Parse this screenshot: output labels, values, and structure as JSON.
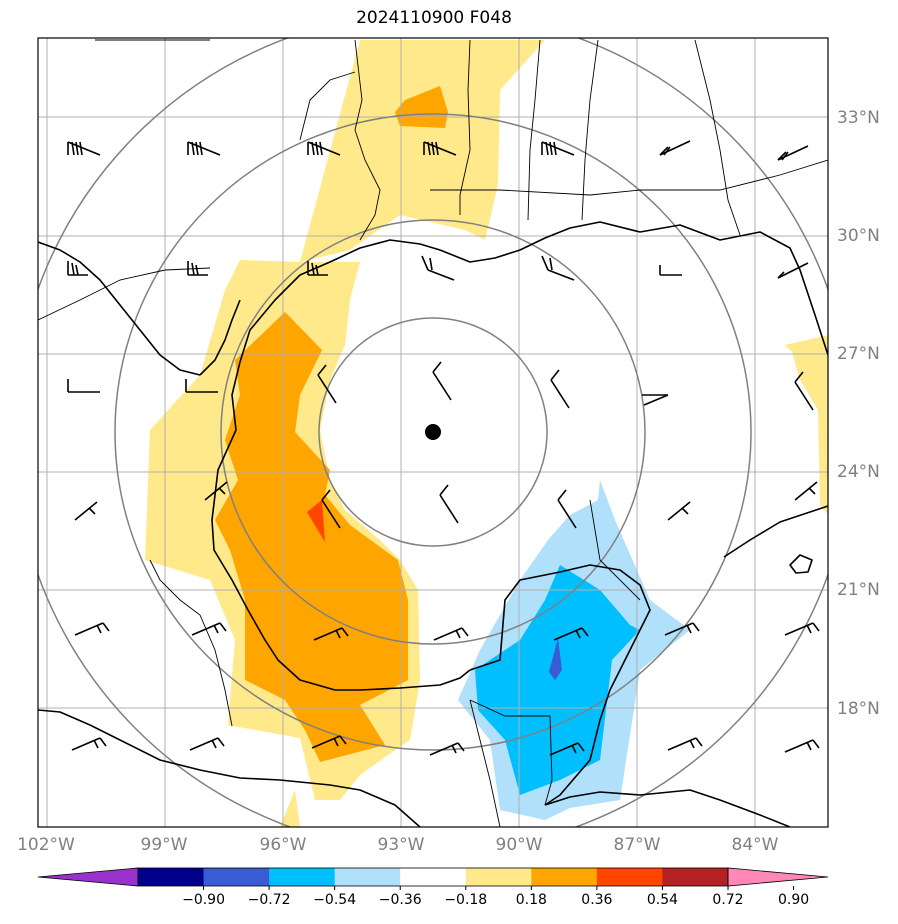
{
  "title": "2024110900 F048",
  "lat_labels": [
    "33°N",
    "30°N",
    "27°N",
    "24°N",
    "21°N",
    "18°N"
  ],
  "lon_labels": [
    "102°W",
    "99°W",
    "96°W",
    "93°W",
    "90°W",
    "87°W",
    "84°W"
  ],
  "colorbar": {
    "ticks": [
      "−0.90",
      "−0.72",
      "−0.54",
      "−0.36",
      "−0.18",
      "0.18",
      "0.36",
      "0.54",
      "0.72",
      "0.90"
    ],
    "colors": [
      "#9932cc",
      "#00008b",
      "#3a5bd6",
      "#00bfff",
      "#b0e0fa",
      "#ffffff",
      "#ffe98a",
      "#ffa500",
      "#ff4500",
      "#b22222",
      "#ff88b8"
    ]
  },
  "colors": {
    "light_yellow": "#ffe98a",
    "orange": "#ffa500",
    "red_orange": "#ff4500",
    "light_blue": "#b0e0fa",
    "mid_blue": "#00bfff",
    "royal_blue": "#3a5bd6",
    "grid": "#b0b0b0",
    "rings": "#808080"
  },
  "storm_center_icon": "filled-circle-icon",
  "wind_barb_icon": "wind-barb-icon"
}
